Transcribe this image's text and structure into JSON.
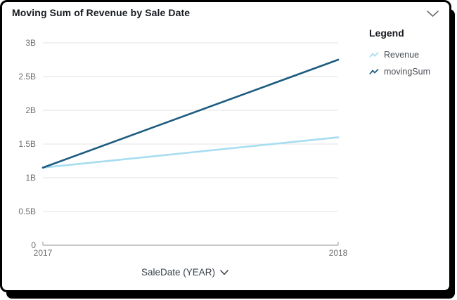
{
  "chart_data": {
    "type": "line",
    "title": "Moving Sum of Revenue by Sale Date",
    "categories": [
      "2017",
      "2018"
    ],
    "series": [
      {
        "name": "Revenue",
        "values_billions": [
          1.15,
          1.6
        ],
        "color": "#a7ddf0"
      },
      {
        "name": "movingSum",
        "values_billions": [
          1.15,
          2.75
        ],
        "color": "#1d5c80"
      }
    ],
    "xlabel": "SaleDate (YEAR)",
    "ylabel": "",
    "ylim_billions": [
      0,
      3
    ],
    "ytick_step_billions": 0.5,
    "ytick_labels": [
      "0",
      "0.5B",
      "1B",
      "1.5B",
      "2B",
      "2.5B",
      "3B"
    ],
    "grid": true,
    "legend": {
      "title": "Legend",
      "position": "right"
    },
    "grid_color": "#e3e3e3",
    "axis_color": "#a6a6a6",
    "tick_text_color": "#6e6e6e"
  },
  "icons": {
    "collapse": "chevron-down",
    "xlabel_menu": "chevron-down",
    "legend_swatch": "mini-line-zigzag"
  }
}
